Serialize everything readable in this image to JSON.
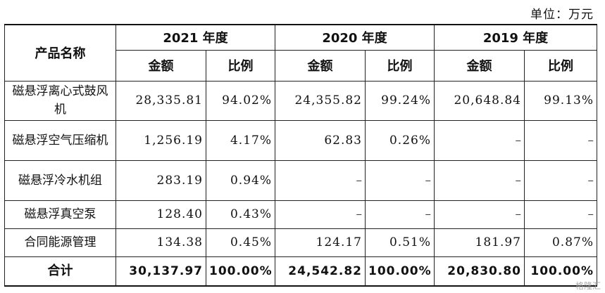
{
  "unit_label": "单位：万元",
  "header": {
    "product_col": "产品名称",
    "years": [
      "2021 年度",
      "2020 年度",
      "2019 年度"
    ],
    "amount": "金额",
    "ratio": "比例"
  },
  "rows": [
    {
      "name": "磁悬浮离心式鼓风机",
      "cells": [
        "28,335.81",
        "94.02%",
        "24,355.82",
        "99.24%",
        "20,648.84",
        "99.13%"
      ]
    },
    {
      "name": "磁悬浮空气压缩机",
      "cells": [
        "1,256.19",
        "4.17%",
        "62.83",
        "0.26%",
        "–",
        "–"
      ]
    },
    {
      "name": "磁悬浮冷水机组",
      "cells": [
        "283.19",
        "0.94%",
        "–",
        "–",
        "–",
        "–"
      ]
    },
    {
      "name": "磁悬浮真空泵",
      "cells": [
        "128.40",
        "0.43%",
        "–",
        "–",
        "–",
        "–"
      ]
    },
    {
      "name": "合同能源管理",
      "cells": [
        "134.38",
        "0.45%",
        "124.17",
        "0.51%",
        "181.97",
        "0.87%"
      ]
    }
  ],
  "total": {
    "name": "合计",
    "cells": [
      "30,137.97",
      "100.00%",
      "24,542.82",
      "100.00%",
      "20,830.80",
      "100.00%"
    ]
  },
  "watermark": "格隆汇"
}
